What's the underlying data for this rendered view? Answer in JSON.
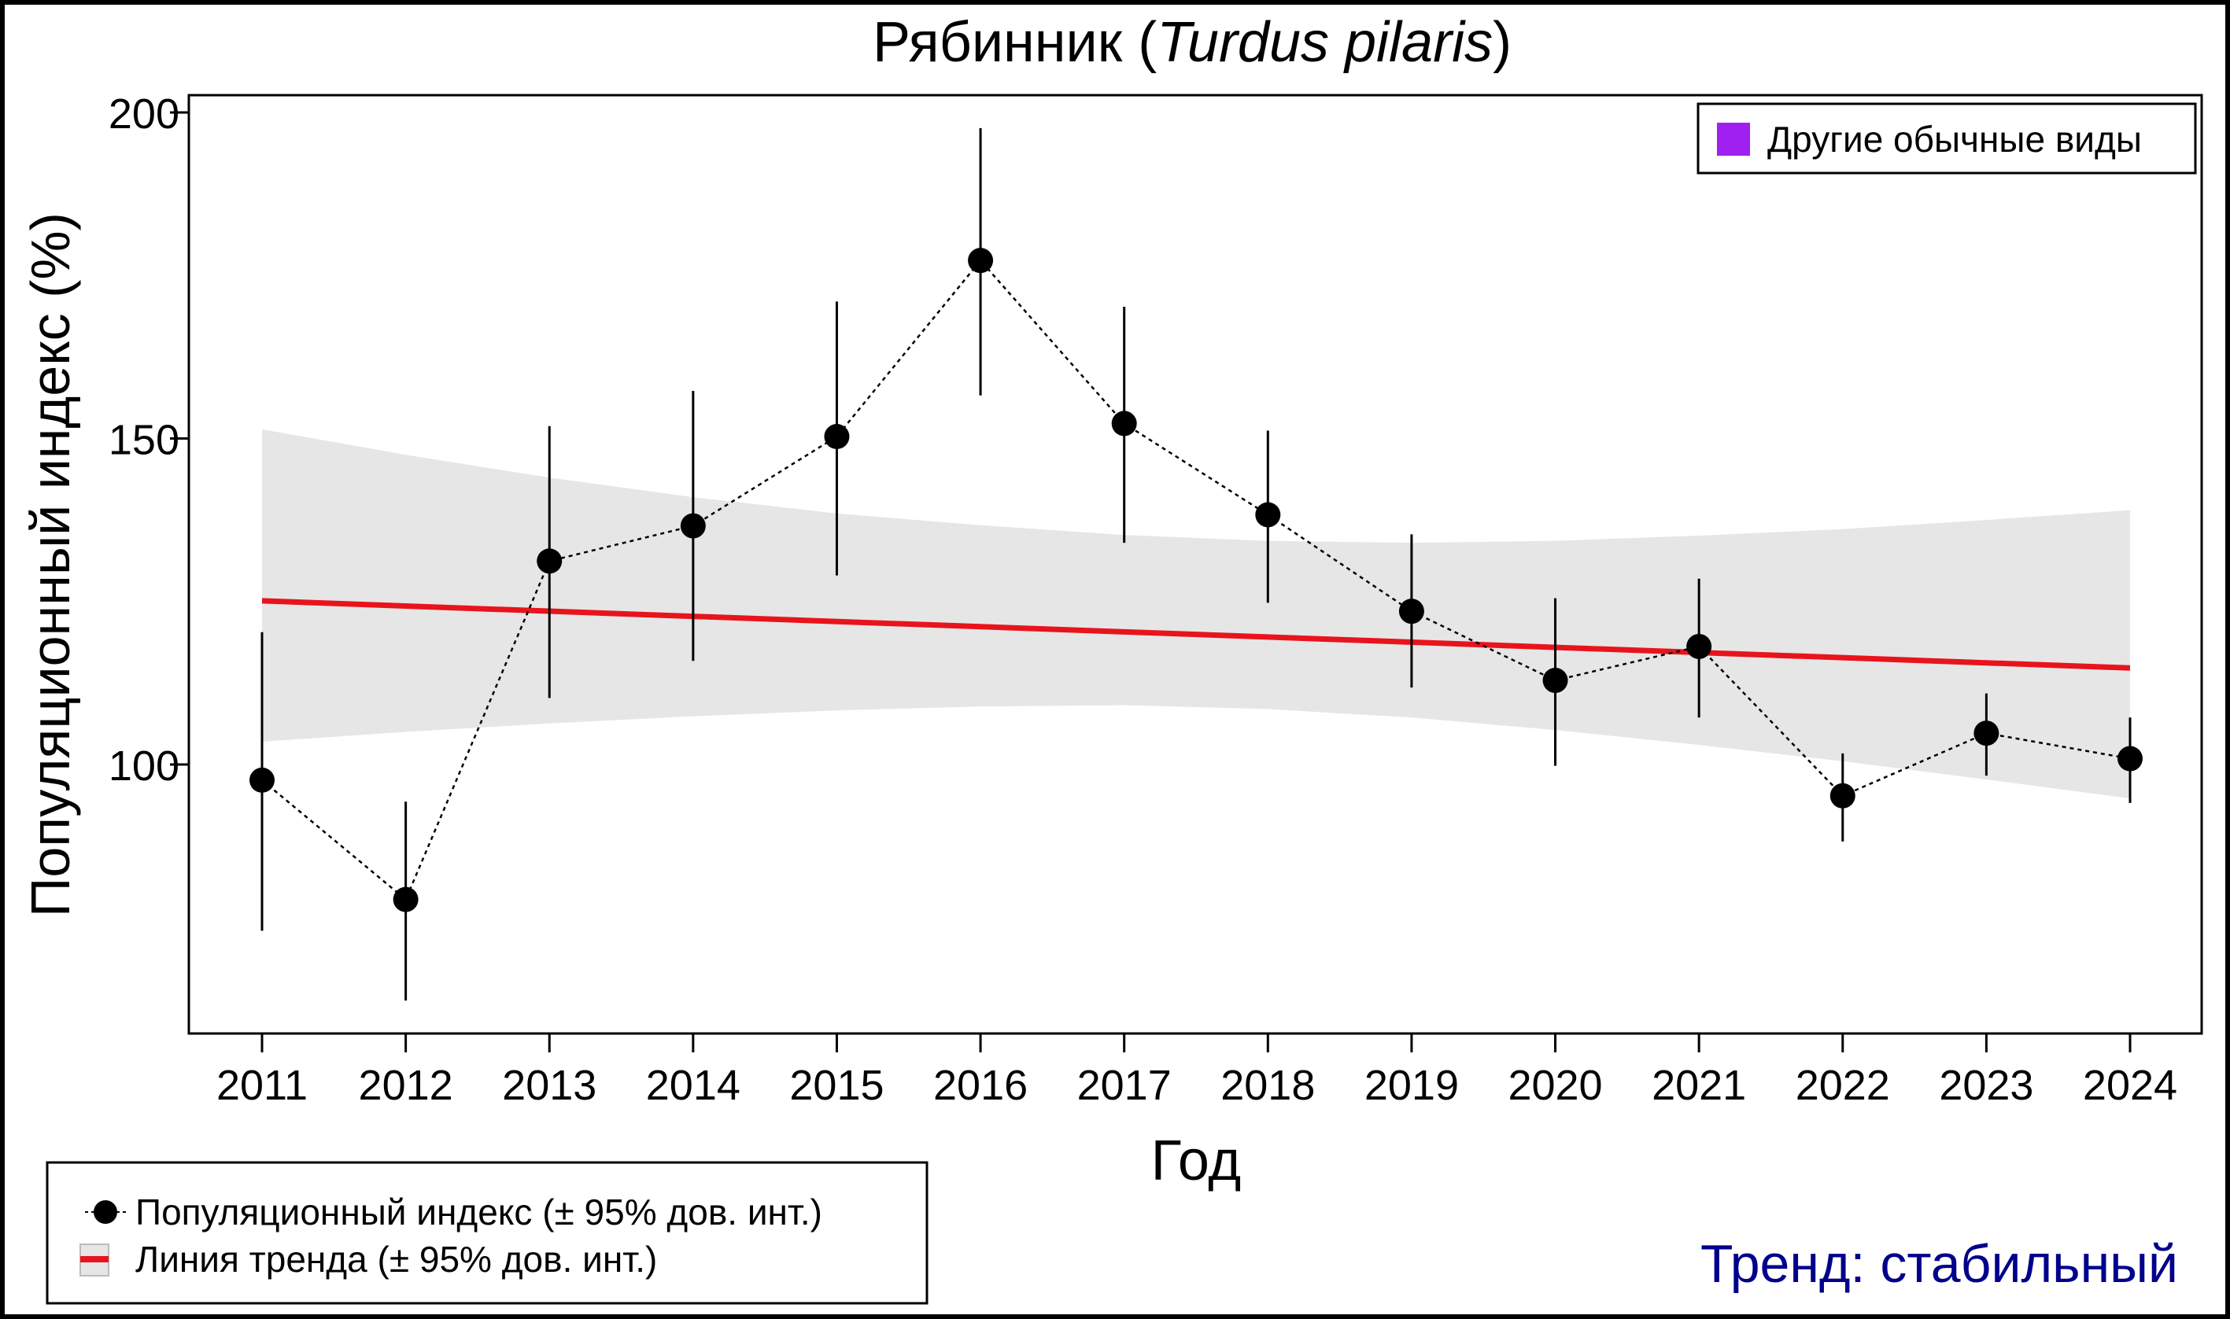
{
  "chart_data": {
    "type": "line",
    "title": "Рябинник (",
    "title_latin": "Turdus pilaris",
    "title_close": ")",
    "xlabel": "Год",
    "ylabel": "Популяционный индекс (%)",
    "ylim": [
      58.8,
      202.6
    ],
    "yticks": [
      100,
      150,
      200
    ],
    "x": [
      2011,
      2012,
      2013,
      2014,
      2015,
      2016,
      2017,
      2018,
      2019,
      2020,
      2021,
      2022,
      2023,
      2024
    ],
    "series": [
      {
        "name": "Популяционный индекс (± 95% дов. инт.)",
        "values": [
          97.6,
          79.3,
          131.2,
          136.6,
          150.3,
          177.3,
          152.3,
          138.3,
          123.5,
          112.9,
          118.1,
          95.2,
          104.8,
          100.9
        ],
        "upper": [
          120.3,
          94.3,
          151.9,
          157.3,
          171,
          197.6,
          170.2,
          151.2,
          135.3,
          125.5,
          128.5,
          101.7,
          110.9,
          107.2
        ],
        "lower": [
          74.5,
          63.8,
          110.2,
          115.9,
          129,
          156.6,
          134,
          124.8,
          111.8,
          99.8,
          107.2,
          88.2,
          98.3,
          94.1
        ]
      },
      {
        "name": "Линия тренда (± 95% дов. инт.)",
        "values_start_end": [
          125.1,
          114.8
        ],
        "band_upper": [
          151.4,
          147.5,
          144,
          141,
          138.5,
          136.7,
          135.2,
          134.3,
          134,
          134.3,
          135.1,
          136.1,
          137.5,
          139
        ],
        "band_lower": [
          103.5,
          105,
          106.3,
          107.4,
          108.3,
          108.9,
          109.1,
          108.5,
          107.2,
          105.3,
          103,
          100.5,
          97.7,
          94.8
        ]
      }
    ],
    "legend_topright": "Другие обычные виды",
    "legend_placement": "bottom-left",
    "trend_text": "Тренд: стабильный",
    "colors": {
      "trend": "#e8141c",
      "band": "#e6e6e6",
      "points": "#000000",
      "other_species": "#a020f0",
      "trend_text": "#00008b"
    }
  }
}
